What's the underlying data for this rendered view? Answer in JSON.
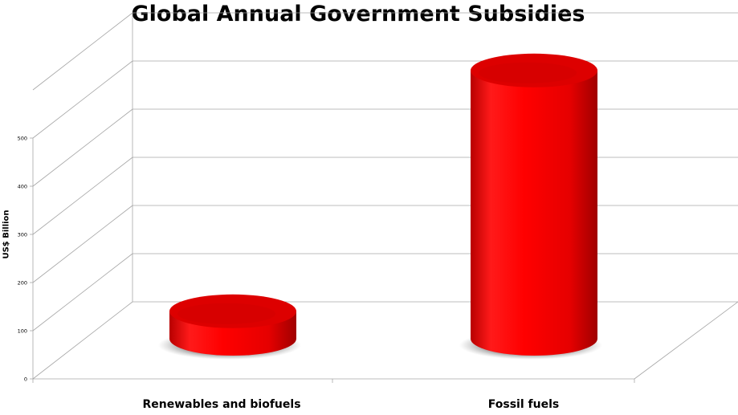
{
  "chart_data": {
    "type": "bar",
    "title": "Global Annual Government Subsidies",
    "ylabel": "US$ Billion",
    "xlabel": "",
    "categories": [
      "Renewables and biofuels",
      "Fossil fuels"
    ],
    "values": [
      57,
      557
    ],
    "ylim": [
      0,
      600
    ],
    "yticks": [
      0,
      100,
      200,
      300,
      400,
      500
    ],
    "grid": true,
    "style": "3d-cylinder",
    "bar_color": "#ff0000"
  }
}
